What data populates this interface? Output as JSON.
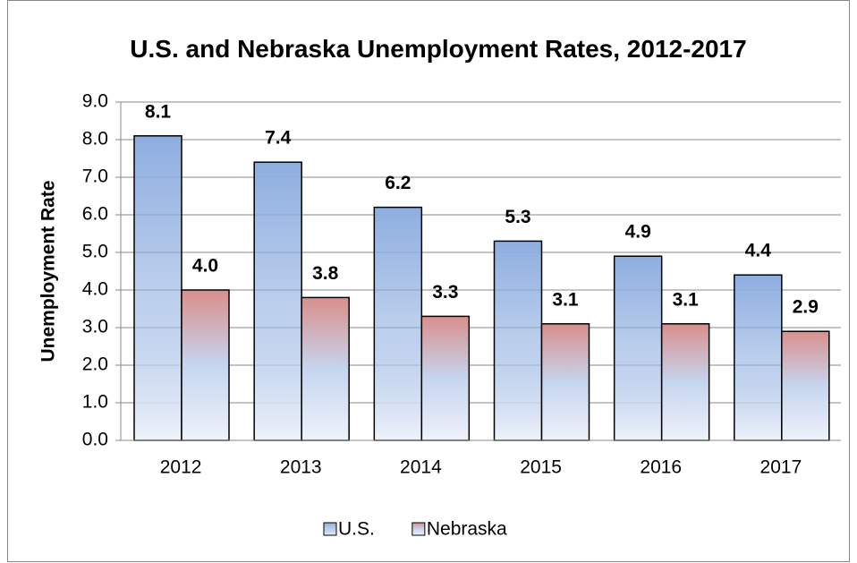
{
  "chart_data": {
    "type": "bar",
    "title": "U.S. and Nebraska Unemployment Rates, 2012-2017",
    "y_label": "Unemployment Rate",
    "categories": [
      "2012",
      "2013",
      "2014",
      "2015",
      "2016",
      "2017"
    ],
    "series": [
      {
        "name": "U.S.",
        "color": "#8eaee0",
        "values": [
          8.1,
          7.4,
          6.2,
          5.3,
          4.9,
          4.4
        ],
        "value_labels": [
          "8.1",
          "7.4",
          "6.2",
          "5.3",
          "4.9",
          "4.4"
        ]
      },
      {
        "name": "Nebraska",
        "color": "#d98f8c",
        "values": [
          4.0,
          3.8,
          3.3,
          3.1,
          3.1,
          2.9
        ],
        "value_labels": [
          "4.0",
          "3.8",
          "3.3",
          "3.1",
          "3.1",
          "2.9"
        ]
      }
    ],
    "ylim": [
      0,
      9
    ],
    "yticks": [
      {
        "value": 0,
        "label": "0.0"
      },
      {
        "value": 1,
        "label": "1.0"
      },
      {
        "value": 2,
        "label": "2.0"
      },
      {
        "value": 3,
        "label": "3.0"
      },
      {
        "value": 4,
        "label": "4.0"
      },
      {
        "value": 5,
        "label": "5.0"
      },
      {
        "value": 6,
        "label": "6.0"
      },
      {
        "value": 7,
        "label": "7.0"
      },
      {
        "value": 8,
        "label": "8.0"
      },
      {
        "value": 9,
        "label": "9.0"
      }
    ],
    "grid": true,
    "legend": "bottom"
  }
}
